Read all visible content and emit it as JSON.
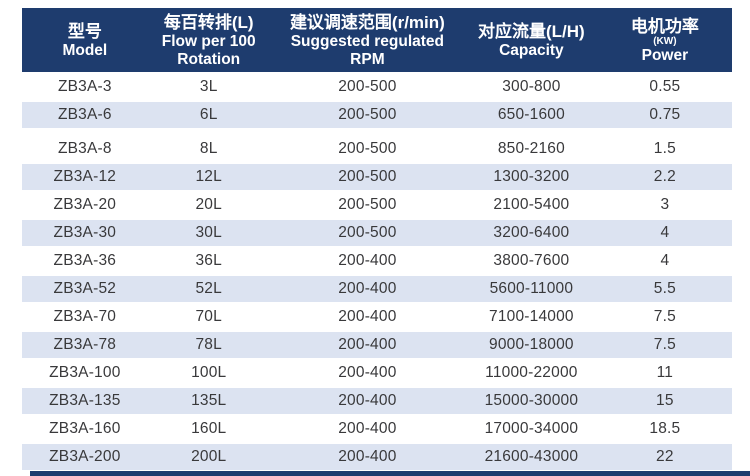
{
  "colors": {
    "header_bg": "#1e3c6e",
    "row_stripe": "#dce3f1",
    "header_text": "#ffffff",
    "body_text": "#39393b"
  },
  "table": {
    "columns": [
      {
        "name": "model",
        "lines": [
          {
            "t": "型号",
            "k": "zh"
          },
          {
            "t": "Model",
            "k": "en"
          }
        ]
      },
      {
        "name": "flow-per-100-rotation",
        "lines": [
          {
            "t": "每百转排(L)",
            "k": "zh"
          },
          {
            "t": "Flow per 100",
            "k": "en"
          },
          {
            "t": "Rotation",
            "k": "en"
          }
        ]
      },
      {
        "name": "suggested-rpm",
        "lines": [
          {
            "t": "建议调速范围(r/min)",
            "k": "zh"
          },
          {
            "t": "Suggested regulated",
            "k": "en"
          },
          {
            "t": "RPM",
            "k": "en"
          }
        ]
      },
      {
        "name": "capacity",
        "lines": [
          {
            "t": "对应流量(L/H)",
            "k": "zh"
          },
          {
            "t": "Capacity",
            "k": "en"
          }
        ]
      },
      {
        "name": "power",
        "lines": [
          {
            "t": "电机功率",
            "k": "zh"
          },
          {
            "t": "(KW)",
            "k": "small"
          },
          {
            "t": "Power",
            "k": "en"
          }
        ]
      }
    ],
    "rows": [
      [
        "ZB3A-3",
        "3L",
        "200-500",
        "300-800",
        "0.55"
      ],
      [
        "ZB3A-6",
        "6L",
        "200-500",
        "650-1600",
        "0.75"
      ],
      [
        "ZB3A-8",
        "8L",
        "200-500",
        "850-2160",
        "1.5"
      ],
      [
        "ZB3A-12",
        "12L",
        "200-500",
        "1300-3200",
        "2.2"
      ],
      [
        "ZB3A-20",
        "20L",
        "200-500",
        "2100-5400",
        "3"
      ],
      [
        "ZB3A-30",
        "30L",
        "200-500",
        "3200-6400",
        "4"
      ],
      [
        "ZB3A-36",
        "36L",
        "200-400",
        "3800-7600",
        "4"
      ],
      [
        "ZB3A-52",
        "52L",
        "200-400",
        "5600-11000",
        "5.5"
      ],
      [
        "ZB3A-70",
        "70L",
        "200-400",
        "7100-14000",
        "7.5"
      ],
      [
        "ZB3A-78",
        "78L",
        "200-400",
        "9000-18000",
        "7.5"
      ],
      [
        "ZB3A-100",
        "100L",
        "200-400",
        "11000-22000",
        "11"
      ],
      [
        "ZB3A-135",
        "135L",
        "200-400",
        "15000-30000",
        "15"
      ],
      [
        "ZB3A-160",
        "160L",
        "200-400",
        "17000-34000",
        "18.5"
      ],
      [
        "ZB3A-200",
        "200L",
        "200-400",
        "21600-43000",
        "22"
      ]
    ]
  }
}
